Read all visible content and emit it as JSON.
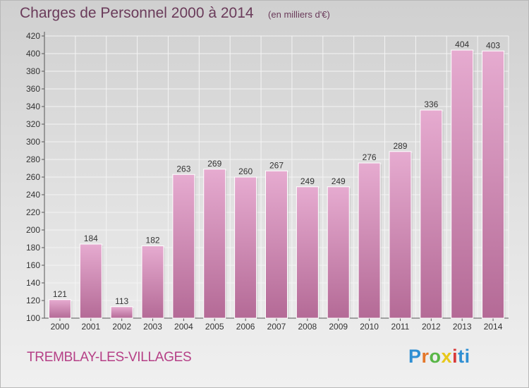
{
  "title": "Charges de Personnel 2000 à 2014",
  "subtitle": "(en milliers d'€)",
  "commune": "TREMBLAY-LES-VILLAGES",
  "logo": {
    "letters": [
      "P",
      "r",
      "o",
      "x",
      "i",
      "t",
      "i"
    ]
  },
  "colors": {
    "bar_top": "#e6abd0",
    "bar_bottom": "#b46a96",
    "title": "#6a3b5a",
    "commune": "#b53f86",
    "grid": "#f4f4f4"
  },
  "chart_data": {
    "type": "bar",
    "categories": [
      "2000",
      "2001",
      "2002",
      "2003",
      "2004",
      "2005",
      "2006",
      "2007",
      "2008",
      "2009",
      "2010",
      "2011",
      "2012",
      "2013",
      "2014"
    ],
    "values": [
      121,
      184,
      113,
      182,
      263,
      269,
      260,
      267,
      249,
      249,
      276,
      289,
      336,
      404,
      403
    ],
    "title": "Charges de Personnel 2000 à 2014",
    "subtitle": "(en milliers d'€)",
    "ylim": [
      100,
      420
    ],
    "yticks": [
      100,
      120,
      140,
      160,
      180,
      200,
      220,
      240,
      260,
      280,
      300,
      320,
      340,
      360,
      380,
      400,
      420
    ],
    "grid": true,
    "data_labels": true
  }
}
